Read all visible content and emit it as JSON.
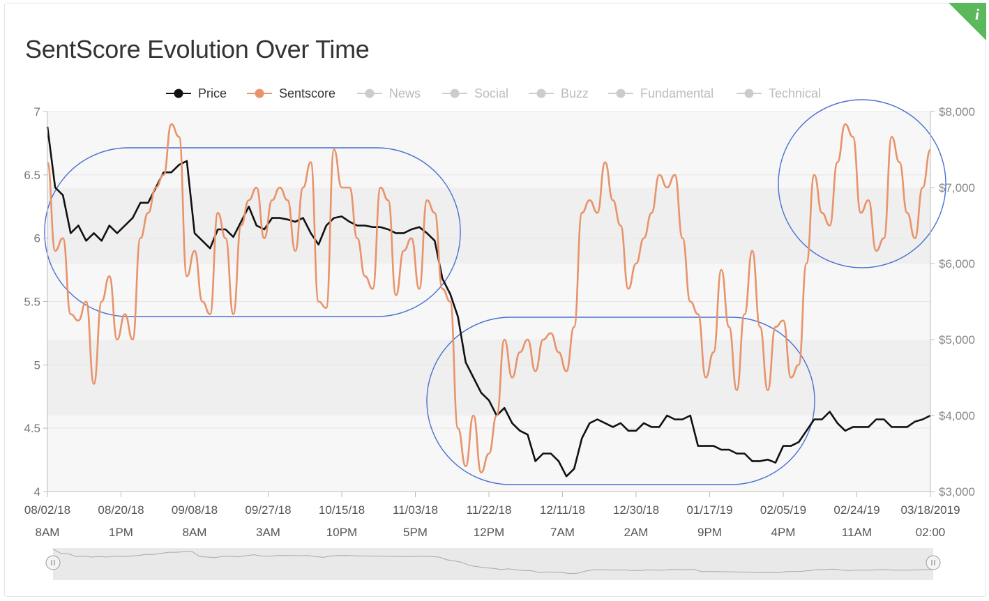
{
  "title": "SentScore Evolution Over Time",
  "info_icon": "info-icon",
  "colors": {
    "price": "#111111",
    "sentscore": "#e8936a",
    "inactive": "#cccccc",
    "annotation": "#4a6fd0",
    "badge": "#5cb85c"
  },
  "legend": [
    {
      "name": "Price",
      "active": true
    },
    {
      "name": "Sentscore",
      "active": true
    },
    {
      "name": "News",
      "active": false
    },
    {
      "name": "Social",
      "active": false
    },
    {
      "name": "Buzz",
      "active": false
    },
    {
      "name": "Fundamental",
      "active": false
    },
    {
      "name": "Technical",
      "active": false
    }
  ],
  "chart_data": {
    "type": "line",
    "title": "SentScore Evolution Over Time",
    "x_ticks": [
      {
        "date": "08/02/18",
        "time": "8AM"
      },
      {
        "date": "08/20/18",
        "time": "1PM"
      },
      {
        "date": "09/08/18",
        "time": "8AM"
      },
      {
        "date": "09/27/18",
        "time": "3AM"
      },
      {
        "date": "10/15/18",
        "time": "10PM"
      },
      {
        "date": "11/03/18",
        "time": "5PM"
      },
      {
        "date": "11/22/18",
        "time": "12PM"
      },
      {
        "date": "12/11/18",
        "time": "7AM"
      },
      {
        "date": "12/30/18",
        "time": "2AM"
      },
      {
        "date": "01/17/19",
        "time": "9PM"
      },
      {
        "date": "02/05/19",
        "time": "4PM"
      },
      {
        "date": "02/24/19",
        "time": "11AM"
      },
      {
        "date": "03/18/2019",
        "time": "02:00"
      }
    ],
    "x_range": [
      "2018-08-02",
      "2019-03-18"
    ],
    "y_left": {
      "ticks": [
        "4",
        "4.5",
        "5",
        "5.5",
        "6",
        "6.5",
        "7"
      ],
      "range": [
        4,
        7
      ]
    },
    "y_right": {
      "ticks": [
        "$3,000",
        "$4,000",
        "$5,000",
        "$6,000",
        "$7,000",
        "$8,000"
      ],
      "range": [
        3000,
        8000
      ]
    },
    "series": [
      {
        "name": "Price",
        "axis": "right",
        "x": [
          "2018-08-02",
          "2018-08-04",
          "2018-08-06",
          "2018-08-08",
          "2018-08-10",
          "2018-08-12",
          "2018-08-14",
          "2018-08-16",
          "2018-08-18",
          "2018-08-20",
          "2018-08-22",
          "2018-08-24",
          "2018-08-26",
          "2018-08-28",
          "2018-08-30",
          "2018-09-01",
          "2018-09-03",
          "2018-09-05",
          "2018-09-07",
          "2018-09-09",
          "2018-09-11",
          "2018-09-13",
          "2018-09-15",
          "2018-09-17",
          "2018-09-19",
          "2018-09-21",
          "2018-09-23",
          "2018-09-25",
          "2018-09-27",
          "2018-09-29",
          "2018-10-01",
          "2018-10-03",
          "2018-10-05",
          "2018-10-07",
          "2018-10-09",
          "2018-10-11",
          "2018-10-13",
          "2018-10-15",
          "2018-10-17",
          "2018-10-19",
          "2018-10-21",
          "2018-10-23",
          "2018-10-25",
          "2018-10-27",
          "2018-10-29",
          "2018-10-31",
          "2018-11-02",
          "2018-11-04",
          "2018-11-06",
          "2018-11-08",
          "2018-11-10",
          "2018-11-12",
          "2018-11-14",
          "2018-11-16",
          "2018-11-18",
          "2018-11-20",
          "2018-11-22",
          "2018-11-24",
          "2018-11-26",
          "2018-11-28",
          "2018-11-30",
          "2018-12-02",
          "2018-12-04",
          "2018-12-06",
          "2018-12-08",
          "2018-12-10",
          "2018-12-12",
          "2018-12-14",
          "2018-12-16",
          "2018-12-18",
          "2018-12-20",
          "2018-12-22",
          "2018-12-24",
          "2018-12-26",
          "2018-12-28",
          "2018-12-30",
          "2019-01-01",
          "2019-01-03",
          "2019-01-05",
          "2019-01-07",
          "2019-01-09",
          "2019-01-11",
          "2019-01-13",
          "2019-01-15",
          "2019-01-17",
          "2019-01-19",
          "2019-01-21",
          "2019-01-23",
          "2019-01-25",
          "2019-01-27",
          "2019-01-29",
          "2019-01-31",
          "2019-02-02",
          "2019-02-04",
          "2019-02-06",
          "2019-02-08",
          "2019-02-10",
          "2019-02-12",
          "2019-02-14",
          "2019-02-16",
          "2019-02-18",
          "2019-02-20",
          "2019-02-22",
          "2019-02-24",
          "2019-02-26",
          "2019-02-28",
          "2019-03-02",
          "2019-03-04",
          "2019-03-06",
          "2019-03-08",
          "2019-03-10",
          "2019-03-12",
          "2019-03-14",
          "2019-03-16",
          "2019-03-18"
        ],
        "values": [
          7800,
          7000,
          6900,
          6400,
          6500,
          6300,
          6400,
          6300,
          6500,
          6400,
          6500,
          6600,
          6800,
          6800,
          7000,
          7200,
          7200,
          7300,
          7350,
          6400,
          6300,
          6200,
          6450,
          6450,
          6350,
          6550,
          6750,
          6500,
          6450,
          6600,
          6600,
          6580,
          6550,
          6600,
          6400,
          6250,
          6500,
          6600,
          6620,
          6550,
          6500,
          6500,
          6480,
          6480,
          6450,
          6400,
          6400,
          6450,
          6480,
          6400,
          6300,
          5800,
          5600,
          5300,
          4700,
          4500,
          4300,
          4200,
          4000,
          4100,
          3900,
          3800,
          3750,
          3400,
          3500,
          3500,
          3400,
          3200,
          3300,
          3700,
          3900,
          3950,
          3900,
          3850,
          3900,
          3800,
          3800,
          3900,
          3850,
          3850,
          4000,
          3950,
          3950,
          4000,
          3600,
          3600,
          3600,
          3550,
          3550,
          3500,
          3500,
          3400,
          3400,
          3420,
          3380,
          3600,
          3600,
          3650,
          3800,
          3950,
          3950,
          4050,
          3900,
          3800,
          3850,
          3850,
          3850,
          3950,
          3950,
          3850,
          3850,
          3850,
          3920,
          3950,
          4000
        ]
      },
      {
        "name": "Sentscore",
        "axis": "left",
        "x": [
          "2018-08-02",
          "2018-08-04",
          "2018-08-06",
          "2018-08-08",
          "2018-08-10",
          "2018-08-12",
          "2018-08-14",
          "2018-08-16",
          "2018-08-18",
          "2018-08-20",
          "2018-08-22",
          "2018-08-24",
          "2018-08-26",
          "2018-08-28",
          "2018-08-30",
          "2018-09-01",
          "2018-09-03",
          "2018-09-05",
          "2018-09-07",
          "2018-09-09",
          "2018-09-11",
          "2018-09-13",
          "2018-09-15",
          "2018-09-17",
          "2018-09-19",
          "2018-09-21",
          "2018-09-23",
          "2018-09-25",
          "2018-09-27",
          "2018-09-29",
          "2018-10-01",
          "2018-10-03",
          "2018-10-05",
          "2018-10-07",
          "2018-10-09",
          "2018-10-11",
          "2018-10-13",
          "2018-10-15",
          "2018-10-17",
          "2018-10-19",
          "2018-10-21",
          "2018-10-23",
          "2018-10-25",
          "2018-10-27",
          "2018-10-29",
          "2018-10-31",
          "2018-11-02",
          "2018-11-04",
          "2018-11-06",
          "2018-11-08",
          "2018-11-10",
          "2018-11-12",
          "2018-11-14",
          "2018-11-16",
          "2018-11-18",
          "2018-11-20",
          "2018-11-22",
          "2018-11-24",
          "2018-11-26",
          "2018-11-28",
          "2018-11-30",
          "2018-12-02",
          "2018-12-04",
          "2018-12-06",
          "2018-12-08",
          "2018-12-10",
          "2018-12-12",
          "2018-12-14",
          "2018-12-16",
          "2018-12-18",
          "2018-12-20",
          "2018-12-22",
          "2018-12-24",
          "2018-12-26",
          "2018-12-28",
          "2018-12-30",
          "2019-01-01",
          "2019-01-03",
          "2019-01-05",
          "2019-01-07",
          "2019-01-09",
          "2019-01-11",
          "2019-01-13",
          "2019-01-15",
          "2019-01-17",
          "2019-01-19",
          "2019-01-21",
          "2019-01-23",
          "2019-01-25",
          "2019-01-27",
          "2019-01-29",
          "2019-01-31",
          "2019-02-02",
          "2019-02-04",
          "2019-02-06",
          "2019-02-08",
          "2019-02-10",
          "2019-02-12",
          "2019-02-14",
          "2019-02-16",
          "2019-02-18",
          "2019-02-20",
          "2019-02-22",
          "2019-02-24",
          "2019-02-26",
          "2019-02-28",
          "2019-03-02",
          "2019-03-04",
          "2019-03-06",
          "2019-03-08",
          "2019-03-10",
          "2019-03-12",
          "2019-03-14",
          "2019-03-16",
          "2019-03-18"
        ],
        "values": [
          6.6,
          5.9,
          6.0,
          5.4,
          5.35,
          5.5,
          4.85,
          5.5,
          5.7,
          5.2,
          5.4,
          5.2,
          6.0,
          6.2,
          6.4,
          6.5,
          6.9,
          6.8,
          5.7,
          5.9,
          5.5,
          5.4,
          6.2,
          6.0,
          5.4,
          6.1,
          6.3,
          6.4,
          6.0,
          6.3,
          6.4,
          6.3,
          5.9,
          6.4,
          6.6,
          5.5,
          5.45,
          6.7,
          6.4,
          6.4,
          6.0,
          5.7,
          5.6,
          6.4,
          6.3,
          5.55,
          5.9,
          6.0,
          5.6,
          6.3,
          6.2,
          5.6,
          5.5,
          4.5,
          4.2,
          4.6,
          4.15,
          4.3,
          4.6,
          5.2,
          4.9,
          5.1,
          5.2,
          4.95,
          5.2,
          5.25,
          5.1,
          4.95,
          5.3,
          6.2,
          6.3,
          6.2,
          6.6,
          6.3,
          6.1,
          5.6,
          5.8,
          6.0,
          6.2,
          6.5,
          6.4,
          6.5,
          6.0,
          5.5,
          5.4,
          4.9,
          5.1,
          5.75,
          5.3,
          4.8,
          5.4,
          5.9,
          5.3,
          4.8,
          5.3,
          5.35,
          4.9,
          5.0,
          5.8,
          6.5,
          6.2,
          6.1,
          6.6,
          6.9,
          6.8,
          6.2,
          6.3,
          5.9,
          6.0,
          6.8,
          6.6,
          6.2,
          6.0,
          6.4,
          6.7
        ]
      }
    ],
    "grid": true,
    "legend_position": "top"
  }
}
